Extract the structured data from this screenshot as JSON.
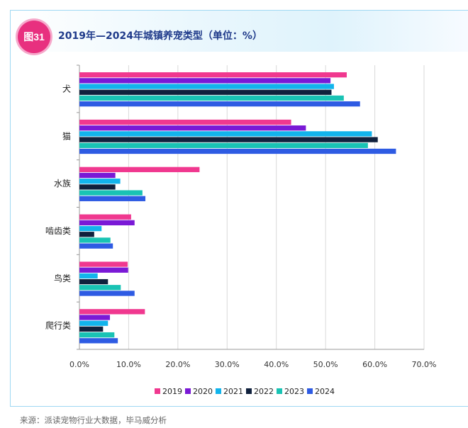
{
  "figure": {
    "badge": "图31",
    "title": "2019年—2024年城镇养宠类型（单位：%）",
    "source": "来源：派读宠物行业大数据，毕马威分析"
  },
  "chart_data": {
    "type": "bar",
    "orientation": "horizontal",
    "title": "2019年—2024年城镇养宠类型（单位：%）",
    "categories": [
      "犬",
      "猫",
      "水族",
      "啮齿类",
      "鸟类",
      "爬行类"
    ],
    "xlim": [
      0,
      70
    ],
    "xticks": [
      "0.0%",
      "10.0%",
      "20.0%",
      "30.0%",
      "40.0%",
      "50.0%",
      "60.0%",
      "70.0%"
    ],
    "grid": "vertical",
    "legend_position": "bottom",
    "series": [
      {
        "name": "2019",
        "color": "#f0388f",
        "values": [
          54.3,
          43.0,
          24.4,
          10.5,
          9.8,
          13.3
        ]
      },
      {
        "name": "2020",
        "color": "#7a19d6",
        "values": [
          51.0,
          46.0,
          7.3,
          11.2,
          9.9,
          6.2
        ]
      },
      {
        "name": "2021",
        "color": "#12b4ec",
        "values": [
          51.7,
          59.4,
          8.3,
          4.5,
          3.7,
          5.8
        ]
      },
      {
        "name": "2022",
        "color": "#10213d",
        "values": [
          51.2,
          60.6,
          7.3,
          3.0,
          5.8,
          4.8
        ]
      },
      {
        "name": "2023",
        "color": "#19c3b4",
        "values": [
          53.7,
          58.6,
          12.8,
          6.3,
          8.4,
          7.1
        ]
      },
      {
        "name": "2024",
        "color": "#2e5be3",
        "values": [
          57.0,
          64.3,
          13.4,
          6.8,
          11.2,
          7.8
        ]
      }
    ]
  }
}
